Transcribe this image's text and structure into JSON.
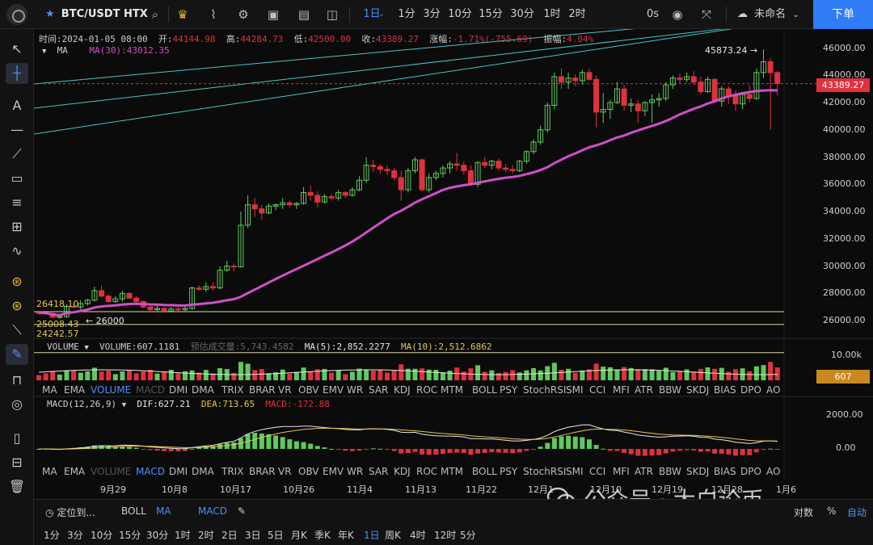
{
  "topbar": {
    "symbol": "BTC/USDT HTX",
    "timeframes": [
      "1日",
      "1分",
      "3分",
      "10分",
      "15分",
      "30分",
      "1时",
      "2时"
    ],
    "active_timeframe": "1日",
    "countdown": "0s",
    "layout_name": "未命名",
    "order_label": "下单"
  },
  "ohlc": {
    "time_label": "时间:",
    "time": "2024-01-05 08:00",
    "open_label": "开:",
    "open": "44144.98",
    "high_label": "高:",
    "high": "44284.73",
    "low_label": "低:",
    "low": "42500.00",
    "close_label": "收:",
    "close": "43389.27",
    "change_label": "涨幅:",
    "change": "-1.71%(-755.69)",
    "amp_label": "振幅:",
    "amp": "4.04%"
  },
  "ma_info": {
    "name": "MA",
    "value": "MA(30):43012.35"
  },
  "volume_info": {
    "name": "VOLUME",
    "volume": "VOLUME:607.1181",
    "forecast": "预估成交量:5,743.4582",
    "ma5": "MA(5):2,852.2277",
    "ma10": "MA(10):2,512.6862"
  },
  "macd_info": {
    "name": "MACD(12,26,9)",
    "dif": "DIF:627.21",
    "dea": "DEA:713.65",
    "macd": "MACD:-172.88"
  },
  "indicator_tabs": [
    "MA",
    "EMA",
    "VOLUME",
    "MACD",
    "DMI",
    "DMA",
    "TRIX",
    "BRAR",
    "VR",
    "OBV",
    "EMV",
    "WR",
    "SAR",
    "KDJ",
    "ROC",
    "MTM",
    "BOLL",
    "PSY",
    "StochRSI",
    "SMI",
    "CCI",
    "MFI",
    "ATR",
    "BBW",
    "SKDJ",
    "BIAS",
    "DPO",
    "AO"
  ],
  "price_axis": [
    "46000.00",
    "44000.00",
    "42000.00",
    "40000.00",
    "38000.00",
    "36000.00",
    "34000.00",
    "32000.00",
    "30000.00",
    "28000.00",
    "26000.00"
  ],
  "current_price": "43389.27",
  "volume_axis": "10.00k",
  "current_volume": "607",
  "macd_axis": [
    "2000.00",
    "0.00"
  ],
  "date_axis": [
    "9月29",
    "10月8",
    "10月17",
    "10月26",
    "11月4",
    "11月13",
    "11月22",
    "12月1",
    "12月10",
    "12月19",
    "12月28",
    "1月6"
  ],
  "annotations": {
    "high_marker": "45873.24",
    "low_marker": "26000",
    "line1": "26418.10",
    "line2": "25008.43",
    "line3": "24242.57"
  },
  "bottom": {
    "locate": "定位到...",
    "boll": "BOLL",
    "ma": "MA",
    "macd": "MACD",
    "percent": "%",
    "log": "对数",
    "auto": "自动",
    "timeframes": [
      "1分",
      "3分",
      "10分",
      "15分",
      "30分",
      "1时",
      "2时",
      "2日",
      "3日",
      "5日",
      "月K",
      "季K",
      "年K",
      "1日",
      "周K",
      "4时",
      "12时",
      "5分"
    ],
    "active_timeframe": "1日"
  },
  "watermark": "公众号 · 大白论币",
  "colors": {
    "up": "#5fc95c",
    "down": "#e0313d",
    "ma30": "#d04fc9",
    "accent": "#2f7cf6"
  },
  "chart_data": {
    "type": "candlestick",
    "start_date": "2023-09-23",
    "candles": [
      [
        26590,
        26650,
        26450,
        26570
      ],
      [
        26570,
        26620,
        26450,
        26530
      ],
      [
        26530,
        26650,
        26300,
        26250
      ],
      [
        26250,
        26350,
        26150,
        26300
      ],
      [
        26300,
        27200,
        26200,
        27050
      ],
      [
        27050,
        27300,
        26900,
        27000
      ],
      [
        27000,
        27500,
        26800,
        27250
      ],
      [
        27250,
        27600,
        27100,
        27500
      ],
      [
        27500,
        28500,
        27400,
        28200
      ],
      [
        28200,
        28600,
        27700,
        27800
      ],
      [
        27800,
        27900,
        27300,
        27400
      ],
      [
        27400,
        27800,
        27300,
        27600
      ],
      [
        27600,
        28200,
        27400,
        28000
      ],
      [
        28000,
        28100,
        27600,
        27650
      ],
      [
        27650,
        27800,
        27200,
        27400
      ],
      [
        27400,
        27500,
        26900,
        27000
      ],
      [
        27000,
        27200,
        26600,
        26800
      ],
      [
        26800,
        27100,
        26700,
        26900
      ],
      [
        26900,
        27000,
        26600,
        26700
      ],
      [
        26700,
        27000,
        26600,
        26850
      ],
      [
        26850,
        27000,
        26700,
        26800
      ],
      [
        26800,
        27100,
        26700,
        26900
      ],
      [
        26900,
        28500,
        26800,
        28400
      ],
      [
        28400,
        28600,
        28200,
        28300
      ],
      [
        28300,
        28800,
        28100,
        28500
      ],
      [
        28500,
        28800,
        28200,
        28400
      ],
      [
        28400,
        30000,
        28300,
        29700
      ],
      [
        29700,
        30400,
        29600,
        30000
      ],
      [
        30000,
        30200,
        29600,
        29950
      ],
      [
        29950,
        34000,
        29900,
        33000
      ],
      [
        33000,
        35200,
        32800,
        34500
      ],
      [
        34500,
        35000,
        33600,
        34200
      ],
      [
        34200,
        34500,
        33400,
        33900
      ],
      [
        33900,
        34600,
        33800,
        34400
      ],
      [
        34400,
        34600,
        34100,
        34500
      ],
      [
        34500,
        35000,
        34200,
        34650
      ],
      [
        34650,
        34800,
        34300,
        34500
      ],
      [
        34500,
        34700,
        34200,
        34600
      ],
      [
        34600,
        35800,
        34500,
        35400
      ],
      [
        35400,
        35900,
        34800,
        35200
      ],
      [
        35200,
        35500,
        34300,
        34700
      ],
      [
        34700,
        35300,
        34600,
        35100
      ],
      [
        35100,
        35300,
        34800,
        35000
      ],
      [
        35000,
        35600,
        34800,
        35400
      ],
      [
        35400,
        35500,
        35000,
        35200
      ],
      [
        35200,
        35800,
        35100,
        35600
      ],
      [
        35600,
        36600,
        35500,
        36300
      ],
      [
        36300,
        38000,
        36100,
        37400
      ],
      [
        37400,
        37800,
        36900,
        37300
      ],
      [
        37300,
        37500,
        36800,
        37100
      ],
      [
        37100,
        37400,
        36700,
        37000
      ],
      [
        37000,
        37200,
        36300,
        36500
      ],
      [
        36500,
        37000,
        34800,
        35600
      ],
      [
        35600,
        37200,
        35400,
        37000
      ],
      [
        37000,
        38000,
        36800,
        37800
      ],
      [
        37800,
        37900,
        35500,
        35600
      ],
      [
        35600,
        36800,
        35400,
        36500
      ],
      [
        36500,
        37000,
        36300,
        36800
      ],
      [
        36800,
        37400,
        36500,
        37200
      ],
      [
        37200,
        37700,
        36800,
        37500
      ],
      [
        37500,
        38300,
        37000,
        37400
      ],
      [
        37400,
        37700,
        36700,
        37000
      ],
      [
        37000,
        37400,
        35900,
        36000
      ],
      [
        36000,
        37700,
        35800,
        37600
      ],
      [
        37600,
        38000,
        37200,
        37400
      ],
      [
        37400,
        37800,
        37100,
        37700
      ],
      [
        37700,
        37900,
        37000,
        37200
      ],
      [
        37200,
        37500,
        36900,
        37100
      ],
      [
        37100,
        37400,
        36800,
        37000
      ],
      [
        37000,
        37800,
        36900,
        37700
      ],
      [
        37700,
        38500,
        37500,
        38400
      ],
      [
        38400,
        39300,
        38200,
        39100
      ],
      [
        39100,
        40300,
        38900,
        40000
      ],
      [
        40000,
        42000,
        39800,
        41800
      ],
      [
        41800,
        44200,
        41500,
        43900
      ],
      [
        43900,
        44500,
        43000,
        43500
      ],
      [
        43500,
        44200,
        43000,
        43800
      ],
      [
        43800,
        44100,
        43200,
        43600
      ],
      [
        43600,
        44400,
        43300,
        44200
      ],
      [
        44200,
        44500,
        43600,
        43700
      ],
      [
        43700,
        44000,
        40200,
        41300
      ],
      [
        41300,
        42700,
        40500,
        41500
      ],
      [
        41500,
        42200,
        40800,
        42000
      ],
      [
        42000,
        43500,
        41900,
        43000
      ],
      [
        43000,
        43300,
        41400,
        41800
      ],
      [
        41800,
        42300,
        41300,
        41900
      ],
      [
        41900,
        42200,
        40500,
        41400
      ],
      [
        41400,
        42100,
        41000,
        42000
      ],
      [
        42000,
        42600,
        40500,
        42200
      ],
      [
        42200,
        42700,
        41700,
        42300
      ],
      [
        42300,
        43500,
        42100,
        43300
      ],
      [
        43300,
        44000,
        43000,
        43800
      ],
      [
        43800,
        44100,
        43400,
        43700
      ],
      [
        43700,
        44200,
        43500,
        43900
      ],
      [
        43900,
        44300,
        43300,
        43500
      ],
      [
        43500,
        43900,
        42600,
        42800
      ],
      [
        42800,
        43900,
        42700,
        43700
      ],
      [
        43700,
        43800,
        42000,
        42100
      ],
      [
        42100,
        43200,
        41700,
        43000
      ],
      [
        43000,
        43200,
        41900,
        42500
      ],
      [
        42500,
        42900,
        41400,
        41900
      ],
      [
        41900,
        42700,
        41500,
        42600
      ],
      [
        42600,
        43300,
        42000,
        42300
      ],
      [
        42300,
        44500,
        42200,
        44200
      ],
      [
        44200,
        45900,
        43800,
        45000
      ],
      [
        45000,
        45300,
        40000,
        44200
      ],
      [
        44200,
        44300,
        42500,
        43389
      ]
    ],
    "ma30_end": 43012.35,
    "y_range": [
      25000,
      46800
    ],
    "volume_current": 607,
    "macd_current": {
      "dif": 627.21,
      "dea": 713.65,
      "hist": -172.88
    }
  }
}
